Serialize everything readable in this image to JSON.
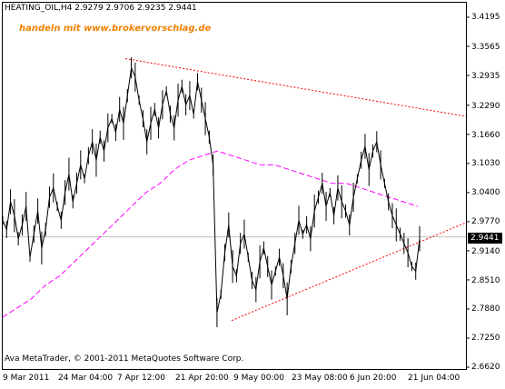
{
  "header": {
    "symbol_line": "HEATING_OIL,H4  2.9279 2.9706 2.9235 2.9441"
  },
  "watermark": "handeln mit www.brokervorschlag.de",
  "footer": {
    "copyright": "Ava MetaTrader, © 2001-2011 MetaQuotes Software Corp."
  },
  "price_axis": {
    "ticks": [
      "3.4195",
      "3.3565",
      "3.2935",
      "3.2290",
      "3.1660",
      "3.1030",
      "3.0400",
      "2.9770",
      "2.9140",
      "2.8510",
      "2.7880",
      "2.7250",
      "2.6620"
    ],
    "current_price": "2.9441"
  },
  "time_axis": {
    "ticks": [
      "9 Mar 2011",
      "24 Mar 04:00",
      "7 Apr 12:00",
      "21 Apr 20:00",
      "9 May 00:00",
      "23 May 08:00",
      "6 Jun 20:00",
      "21 Jun 04:00"
    ]
  },
  "colors": {
    "price_line": "#000000",
    "moving_average": "#ff00ff",
    "trendlines": "#ff0000",
    "watermark": "#f08000",
    "background": "#ffffff"
  },
  "chart_data": {
    "type": "line",
    "symbol": "HEATING_OIL",
    "timeframe": "H4",
    "ylim": [
      2.662,
      3.4195
    ],
    "series": [
      {
        "name": "",
        "values": [
          2.98,
          2.96,
          3.02,
          2.99,
          2.94,
          2.97,
          3.01,
          2.9,
          2.95,
          3.0,
          2.92,
          2.96,
          3.03,
          3.05,
          3.01,
          2.98,
          3.04,
          3.08,
          3.02,
          3.06,
          3.1,
          3.07,
          3.12,
          3.15,
          3.11,
          3.16,
          3.13,
          3.18,
          3.2,
          3.17,
          3.22,
          3.19,
          3.25,
          3.31,
          3.29,
          3.24,
          3.2,
          3.15,
          3.19,
          3.22,
          3.18,
          3.23,
          3.26,
          3.21,
          3.18,
          3.24,
          3.27,
          3.23,
          3.25,
          3.21,
          3.28,
          3.24,
          3.2,
          3.16,
          3.1,
          2.78,
          2.82,
          2.91,
          2.97,
          2.88,
          2.86,
          2.93,
          2.95,
          2.9,
          2.85,
          2.83,
          2.89,
          2.92,
          2.88,
          2.84,
          2.87,
          2.9,
          2.86,
          2.81,
          2.88,
          2.93,
          2.98,
          2.95,
          2.97,
          2.94,
          3.0,
          3.03,
          3.06,
          3.01,
          3.04,
          2.99,
          3.05,
          3.02,
          3.0,
          2.97,
          3.03,
          3.07,
          3.11,
          3.14,
          3.09,
          3.13,
          3.15,
          3.1,
          3.06,
          3.02,
          2.99,
          2.97,
          2.95,
          2.93,
          2.91,
          2.88,
          2.87,
          2.94
        ]
      },
      {
        "name": "",
        "values": [
          2.77,
          2.79,
          2.81,
          2.84,
          2.86,
          2.89,
          2.92,
          2.95,
          2.98,
          3.01,
          3.04,
          3.06,
          3.09,
          3.11,
          3.12,
          3.13,
          3.12,
          3.11,
          3.1,
          3.1,
          3.09,
          3.08,
          3.07,
          3.06,
          3.06,
          3.05,
          3.04,
          3.03,
          3.02,
          3.01
        ]
      }
    ]
  }
}
